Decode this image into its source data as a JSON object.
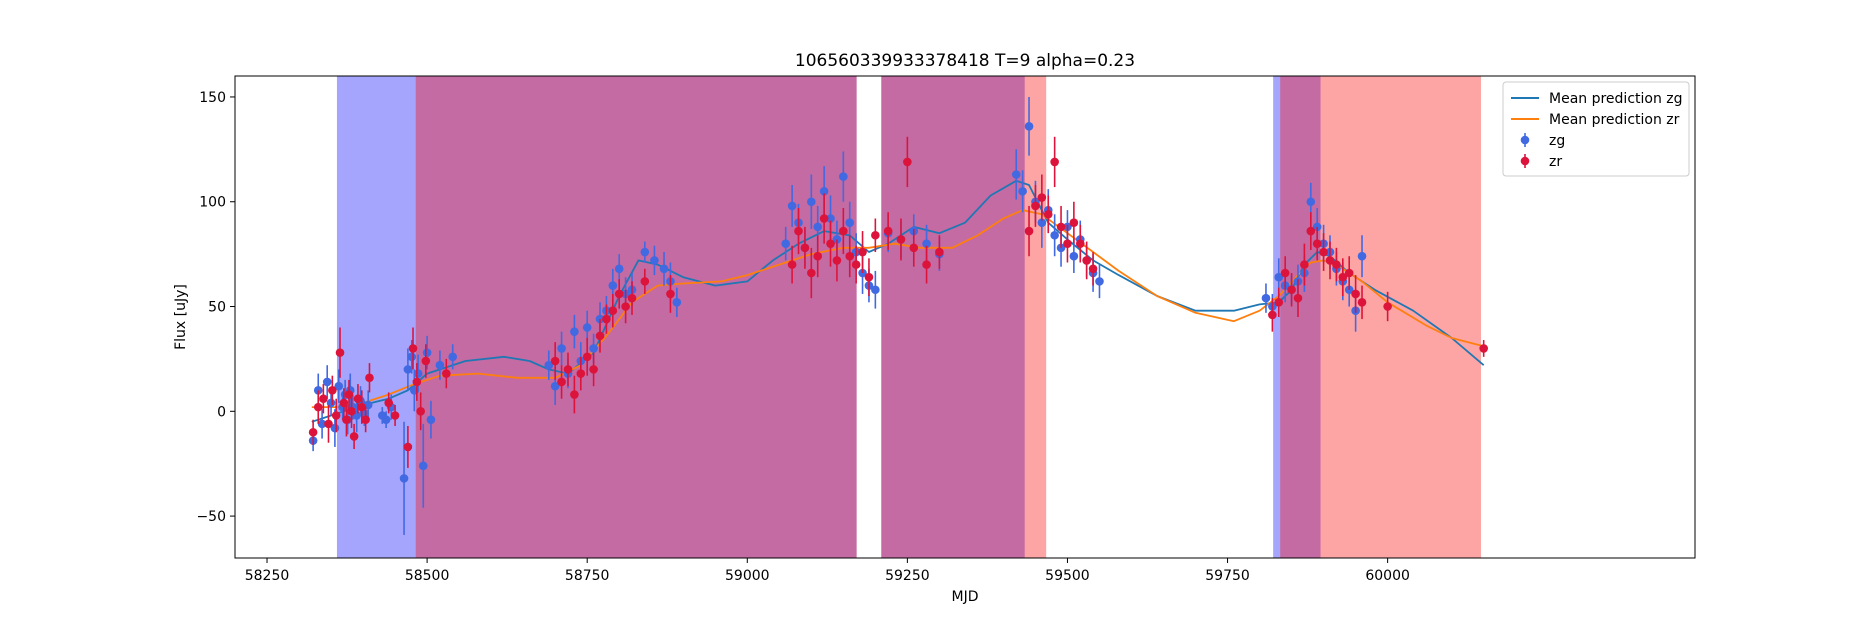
{
  "chart_data": {
    "type": "scatter",
    "title": "106560339933378418 T=9 alpha=0.23",
    "xlabel": "MJD",
    "ylabel": "Flux [uJy]",
    "xlim": [
      58200,
      60480
    ],
    "ylim": [
      -70,
      160
    ],
    "xticks": [
      58250,
      58500,
      58750,
      59000,
      59250,
      59500,
      59750,
      60000
    ],
    "xtick_labels": [
      "58250",
      "58500",
      "58750",
      "59000",
      "59250",
      "59500",
      "59750",
      "60000"
    ],
    "yticks": [
      -50,
      0,
      50,
      100,
      150
    ],
    "ytick_labels": [
      "−50",
      "0",
      "50",
      "100",
      "150"
    ],
    "grid": false,
    "legend_position": "top-right",
    "colors": {
      "zg_points": "#4169e1",
      "zr_points": "#dc143c",
      "zg_line": "#1f77b4",
      "zr_line": "#ff7f0e",
      "blue_band": "#a5a5fd",
      "red_band": "#fda5a5",
      "overlap_band": "#c46ba3"
    },
    "shaded_regions": [
      {
        "x0": 58360,
        "x1": 58483,
        "color": "blue"
      },
      {
        "x0": 58483,
        "x1": 59170,
        "color": "overlap"
      },
      {
        "x0": 59210,
        "x1": 59434,
        "color": "overlap"
      },
      {
        "x0": 59434,
        "x1": 59466,
        "color": "red"
      },
      {
        "x0": 59822,
        "x1": 59833,
        "color": "blue"
      },
      {
        "x0": 59833,
        "x1": 59896,
        "color": "overlap"
      },
      {
        "x0": 59896,
        "x1": 60145,
        "color": "red"
      }
    ],
    "series": [
      {
        "name": "Mean prediction zg",
        "kind": "line",
        "x": [
          58320,
          58340,
          58370,
          58400,
          58440,
          58470,
          58500,
          58560,
          58620,
          58660,
          58690,
          58720,
          58760,
          58800,
          58830,
          58860,
          58900,
          58950,
          59000,
          59040,
          59080,
          59120,
          59160,
          59190,
          59220,
          59260,
          59300,
          59340,
          59380,
          59420,
          59440,
          59470,
          59500,
          59540,
          59580,
          59640,
          59700,
          59760,
          59800,
          59830,
          59850,
          59870,
          59890,
          59910,
          59940,
          59980,
          60040,
          60100,
          60150
        ],
        "y": [
          -5,
          -3,
          0,
          3,
          6,
          10,
          18,
          24,
          26,
          24,
          20,
          18,
          28,
          55,
          72,
          70,
          64,
          60,
          62,
          72,
          80,
          86,
          84,
          76,
          80,
          88,
          85,
          90,
          103,
          110,
          108,
          90,
          82,
          72,
          65,
          55,
          48,
          48,
          51,
          52,
          58,
          70,
          76,
          74,
          66,
          58,
          48,
          35,
          22
        ]
      },
      {
        "name": "Mean prediction zr",
        "kind": "line",
        "x": [
          58320,
          58360,
          58400,
          58440,
          58480,
          58520,
          58580,
          58640,
          58700,
          58740,
          58780,
          58820,
          58860,
          58900,
          58960,
          59000,
          59050,
          59100,
          59150,
          59190,
          59230,
          59270,
          59320,
          59360,
          59400,
          59430,
          59460,
          59500,
          59540,
          59580,
          59640,
          59700,
          59760,
          59800,
          59830,
          59860,
          59880,
          59900,
          59930,
          59960,
          60000,
          60060,
          60100,
          60150
        ],
        "y": [
          2,
          2,
          4,
          8,
          13,
          17,
          18,
          16,
          16,
          22,
          36,
          52,
          60,
          61,
          62,
          65,
          70,
          75,
          78,
          78,
          80,
          78,
          78,
          84,
          92,
          96,
          94,
          85,
          76,
          67,
          55,
          47,
          43,
          48,
          55,
          65,
          71,
          72,
          68,
          62,
          52,
          41,
          35,
          31
        ]
      },
      {
        "name": "zg",
        "kind": "errorbar",
        "x": [
          58322,
          58330,
          58336,
          58344,
          58350,
          58356,
          58362,
          58368,
          58372,
          58376,
          58380,
          58384,
          58390,
          58396,
          58402,
          58408,
          58430,
          58436,
          58444,
          58464,
          58470,
          58476,
          58480,
          58486,
          58494,
          58500,
          58506,
          58520,
          58540,
          58690,
          58700,
          58710,
          58720,
          58730,
          58740,
          58750,
          58760,
          58770,
          58780,
          58790,
          58800,
          58810,
          58820,
          58840,
          58855,
          58870,
          58880,
          58890,
          59060,
          59070,
          59080,
          59090,
          59100,
          59110,
          59120,
          59130,
          59140,
          59150,
          59160,
          59170,
          59180,
          59190,
          59200,
          59220,
          59240,
          59260,
          59280,
          59300,
          59420,
          59430,
          59440,
          59450,
          59460,
          59470,
          59480,
          59490,
          59500,
          59510,
          59520,
          59530,
          59540,
          59550,
          59810,
          59820,
          59830,
          59840,
          59850,
          59860,
          59870,
          59880,
          59890,
          59900,
          59910,
          59920,
          59930,
          59940,
          59950,
          59960
        ],
        "y": [
          -14,
          10,
          -6,
          14,
          4,
          -8,
          12,
          2,
          8,
          -4,
          10,
          2,
          -2,
          5,
          -1,
          3,
          -2,
          -4,
          2,
          -32,
          20,
          26,
          10,
          18,
          -26,
          28,
          -4,
          22,
          26,
          22,
          12,
          30,
          18,
          38,
          24,
          40,
          30,
          44,
          48,
          60,
          68,
          56,
          58,
          76,
          72,
          68,
          62,
          52,
          80,
          98,
          90,
          78,
          100,
          88,
          105,
          92,
          82,
          112,
          90,
          76,
          66,
          60,
          58,
          85,
          82,
          86,
          80,
          75,
          113,
          105,
          136,
          100,
          90,
          96,
          84,
          78,
          88,
          74,
          82,
          72,
          66,
          62,
          54,
          50,
          64,
          60,
          58,
          62,
          66,
          100,
          88,
          80,
          76,
          68,
          62,
          58,
          48,
          74
        ],
        "yerr": [
          5,
          8,
          7,
          8,
          6,
          9,
          8,
          6,
          7,
          7,
          8,
          6,
          8,
          7,
          6,
          7,
          4,
          4,
          6,
          27,
          10,
          8,
          10,
          9,
          20,
          8,
          9,
          7,
          6,
          7,
          9,
          8,
          7,
          8,
          9,
          8,
          7,
          8,
          7,
          8,
          7,
          8,
          8,
          5,
          7,
          8,
          9,
          7,
          8,
          10,
          9,
          9,
          13,
          10,
          12,
          11,
          9,
          12,
          10,
          9,
          10,
          8,
          9,
          9,
          9,
          8,
          9,
          8,
          12,
          10,
          14,
          10,
          12,
          10,
          10,
          9,
          8,
          8,
          9,
          8,
          9,
          8,
          7,
          6,
          9,
          8,
          7,
          8,
          9,
          9,
          9,
          9,
          8,
          8,
          9,
          8,
          10,
          10
        ]
      },
      {
        "name": "zr",
        "kind": "errorbar",
        "x": [
          58322,
          58330,
          58338,
          58346,
          58352,
          58358,
          58364,
          58370,
          58374,
          58378,
          58382,
          58386,
          58392,
          58398,
          58404,
          58410,
          58440,
          58450,
          58470,
          58478,
          58484,
          58490,
          58498,
          58530,
          58700,
          58710,
          58720,
          58730,
          58740,
          58750,
          58760,
          58770,
          58780,
          58790,
          58800,
          58810,
          58820,
          58840,
          58880,
          59070,
          59080,
          59090,
          59100,
          59110,
          59120,
          59130,
          59140,
          59150,
          59160,
          59170,
          59180,
          59190,
          59200,
          59220,
          59240,
          59250,
          59260,
          59280,
          59300,
          59440,
          59450,
          59460,
          59470,
          59480,
          59490,
          59500,
          59510,
          59520,
          59530,
          59540,
          59820,
          59830,
          59840,
          59850,
          59860,
          59870,
          59880,
          59890,
          59900,
          59910,
          59920,
          59930,
          59940,
          59950,
          59960,
          60000,
          60150
        ],
        "y": [
          -10,
          2,
          6,
          -6,
          10,
          -2,
          28,
          4,
          -4,
          8,
          0,
          -12,
          6,
          2,
          -4,
          16,
          4,
          -2,
          -17,
          30,
          14,
          0,
          24,
          18,
          24,
          14,
          20,
          8,
          18,
          26,
          20,
          36,
          44,
          48,
          56,
          50,
          54,
          62,
          56,
          70,
          86,
          78,
          66,
          74,
          92,
          80,
          72,
          86,
          74,
          70,
          76,
          64,
          84,
          86,
          82,
          119,
          78,
          70,
          76,
          86,
          98,
          102,
          94,
          119,
          88,
          80,
          90,
          80,
          72,
          68,
          46,
          52,
          66,
          58,
          54,
          70,
          86,
          80,
          76,
          72,
          70,
          64,
          66,
          56,
          52,
          50,
          30
        ],
        "yerr": [
          6,
          8,
          7,
          9,
          7,
          8,
          12,
          7,
          8,
          7,
          8,
          6,
          7,
          8,
          6,
          7,
          5,
          5,
          10,
          10,
          9,
          9,
          8,
          7,
          9,
          8,
          8,
          9,
          8,
          9,
          8,
          8,
          7,
          8,
          7,
          8,
          8,
          6,
          9,
          9,
          11,
          10,
          12,
          10,
          12,
          11,
          10,
          11,
          10,
          9,
          10,
          9,
          8,
          9,
          10,
          12,
          9,
          9,
          8,
          12,
          10,
          11,
          9,
          12,
          10,
          9,
          10,
          9,
          9,
          8,
          8,
          7,
          8,
          8,
          9,
          10,
          9,
          8,
          9,
          9,
          8,
          9,
          8,
          9,
          8,
          7,
          4
        ]
      }
    ]
  }
}
